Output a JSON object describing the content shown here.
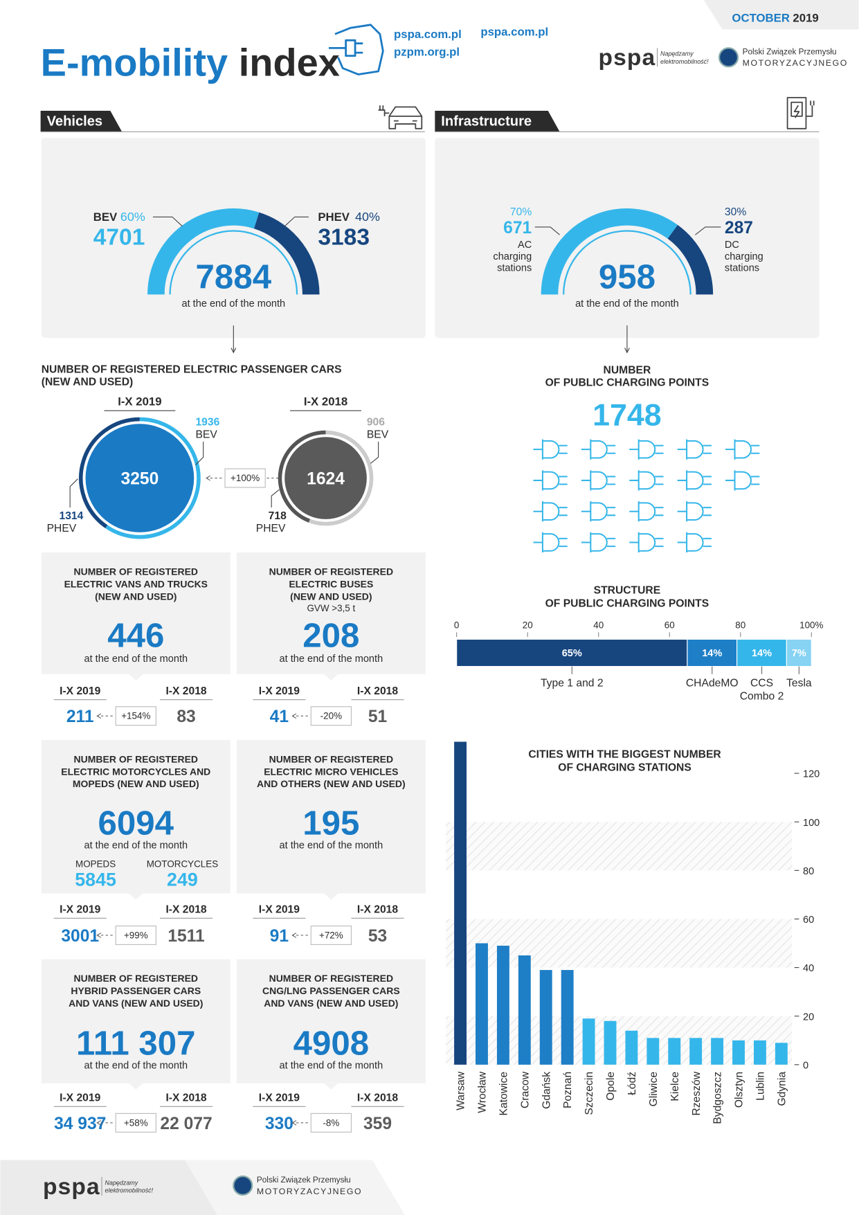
{
  "header": {
    "title_part1": "E-mobility",
    "title_part2": "index",
    "links": [
      "pspa.com.pl",
      "pzpm.org.pl",
      "pspa.com.pl"
    ],
    "month": "OCTOBER",
    "year": "2019"
  },
  "logos": {
    "pspa": "pspa",
    "pspa_tagline": [
      "Napędzamy",
      "elektromobilność!"
    ],
    "pzpm": [
      "Polski Związek Przemysłu",
      "MOTORYZACYJNEGO"
    ]
  },
  "sections": {
    "vehicles": "Vehicles",
    "infrastructure": "Infrastructure"
  },
  "passenger_cars": {
    "title": "ELECTRIC PASSENGER CARS",
    "bev": {
      "label": "BEV",
      "share": "60%",
      "value": 4701
    },
    "phev": {
      "label": "PHEV",
      "share": "40%",
      "value": 3183
    },
    "total": 7884,
    "note": "at the end of the month"
  },
  "charging_stations": {
    "title": "CHARGING STATIONS",
    "ac": {
      "share": "70%",
      "value": 671,
      "label": [
        "AC",
        "charging",
        "stations"
      ]
    },
    "dc": {
      "share": "30%",
      "value": 287,
      "label": [
        "DC",
        "charging",
        "stations"
      ]
    },
    "total": 958,
    "note": "at the end of the month"
  },
  "registered_cars": {
    "title": [
      "NUMBER OF REGISTERED ELECTRIC PASSENGER CARS",
      "(NEW AND USED)"
    ],
    "current": {
      "period": "I-X 2019",
      "total": 3250,
      "bev": 1936,
      "bev_label": "BEV",
      "phev": 1314,
      "phev_label": "PHEV"
    },
    "previous": {
      "period": "I-X 2018",
      "total": 1624,
      "bev": 906,
      "bev_label": "BEV",
      "phev": 718,
      "phev_label": "PHEV"
    },
    "change": "+100%"
  },
  "public_charging_points": {
    "title": [
      "NUMBER",
      "OF PUBLIC CHARGING POINTS"
    ],
    "value": 1748
  },
  "panels": [
    {
      "title": [
        "NUMBER OF REGISTERED",
        "ELECTRIC VANS AND TRUCKS",
        "(NEW AND USED)"
      ],
      "value": 446,
      "note": "at the end of the month",
      "current": {
        "period": "I-X 2019",
        "value": 211
      },
      "previous": {
        "period": "I-X 2018",
        "value": 83
      },
      "change": "+154%"
    },
    {
      "title": [
        "NUMBER OF REGISTERED",
        "ELECTRIC BUSES",
        "(NEW AND USED)"
      ],
      "subtitle": "GVW >3,5 t",
      "value": 208,
      "note": "at the end of the month",
      "current": {
        "period": "I-X 2019",
        "value": 41
      },
      "previous": {
        "period": "I-X 2018",
        "value": 51
      },
      "change": "-20%"
    },
    {
      "title": [
        "NUMBER OF REGISTERED",
        "ELECTRIC MOTORCYCLES AND",
        "MOPEDS (NEW AND USED)"
      ],
      "value": 6094,
      "note": "at the end of the month",
      "split": [
        {
          "label": "MOPEDS",
          "value": 5845
        },
        {
          "label": "MOTORCYCLES",
          "value": 249
        }
      ],
      "current": {
        "period": "I-X 2019",
        "value": 3001
      },
      "previous": {
        "period": "I-X 2018",
        "value": 1511
      },
      "change": "+99%"
    },
    {
      "title": [
        "NUMBER OF REGISTERED",
        "ELECTRIC MICRO VEHICLES",
        "AND OTHERS (NEW AND USED)"
      ],
      "value": 195,
      "note": "at the end of the month",
      "current": {
        "period": "I-X 2019",
        "value": 91
      },
      "previous": {
        "period": "I-X 2018",
        "value": 53
      },
      "change": "+72%"
    },
    {
      "title": [
        "NUMBER OF REGISTERED",
        "HYBRID PASSENGER CARS",
        "AND VANS (NEW AND USED)"
      ],
      "value": "111 307",
      "note": "at the end of the month",
      "current": {
        "period": "I-X 2019",
        "value": "34 937"
      },
      "previous": {
        "period": "I-X 2018",
        "value": "22 077"
      },
      "change": "+58%"
    },
    {
      "title": [
        "NUMBER OF REGISTERED",
        "CNG/LNG PASSENGER CARS",
        "AND VANS (NEW AND USED)"
      ],
      "value": 4908,
      "note": "at the end of the month",
      "current": {
        "period": "I-X 2019",
        "value": 330
      },
      "previous": {
        "period": "I-X 2018",
        "value": 359
      },
      "change": "-8%"
    }
  ],
  "chart_data": [
    {
      "type": "stacked-bar",
      "title": [
        "STRUCTURE",
        "OF PUBLIC CHARGING POINTS"
      ],
      "categories": [
        null
      ],
      "series": [
        {
          "name": "Type 1 and 2",
          "color": "#17467f",
          "values": [
            65
          ],
          "value_labels": [
            "65%"
          ]
        },
        {
          "name": "CHAdeMO",
          "color": "#1e7fc7",
          "values": [
            14
          ],
          "value_labels": [
            "14%"
          ]
        },
        {
          "name": "CCS Combo 2",
          "color": "#35b6ea",
          "values": [
            14
          ],
          "value_labels": [
            "14%"
          ]
        },
        {
          "name": "Tesla",
          "color": "#86d3f3",
          "values": [
            7
          ],
          "value_labels": [
            "7%"
          ]
        }
      ],
      "xlim": [
        0,
        100
      ],
      "xticks": [
        0,
        20,
        40,
        60,
        80,
        {
          "value": 100,
          "label": "100%"
        }
      ]
    },
    {
      "type": "bar",
      "title": [
        "CITIES WITH THE BIGGEST NUMBER",
        "OF CHARGING STATIONS"
      ],
      "categories": [
        "Warsaw",
        "Wrocław",
        "Katowice",
        "Cracow",
        "Gdańsk",
        "Poznań",
        "Szczecin",
        "Opole",
        "Łódź",
        "Gliwice",
        "Kielce",
        "Rzeszów",
        "Bydgoszcz",
        "Olsztyn",
        "Lublin",
        "Gdynia"
      ],
      "values": [
        133,
        50,
        49,
        45,
        39,
        39,
        19,
        18,
        14,
        11,
        11,
        11,
        11,
        10,
        10,
        9
      ],
      "colors": [
        "#17467f",
        "#1e7fc7",
        "#1e7fc7",
        "#1e7fc7",
        "#1e7fc7",
        "#1e7fc7",
        "#35b6ea",
        "#35b6ea",
        "#35b6ea",
        "#35b6ea",
        "#35b6ea",
        "#35b6ea",
        "#35b6ea",
        "#35b6ea",
        "#35b6ea",
        "#35b6ea"
      ],
      "ylim": [
        0,
        135
      ],
      "yticks": [
        0,
        20,
        40,
        60,
        80,
        100,
        120
      ],
      "y_axis_side": "right",
      "grid": true
    }
  ]
}
